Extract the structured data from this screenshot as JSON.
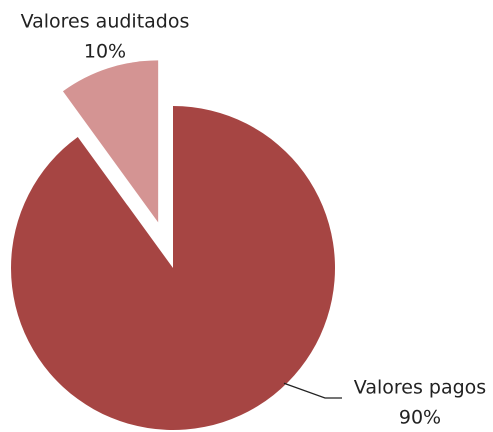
{
  "chart_data": {
    "type": "pie",
    "categories": [
      "Valores pagos",
      "Valores auditados"
    ],
    "values": [
      90,
      10
    ],
    "value_labels": [
      "90%",
      "10%"
    ],
    "colors": [
      "#a64543",
      "#d49493"
    ]
  }
}
